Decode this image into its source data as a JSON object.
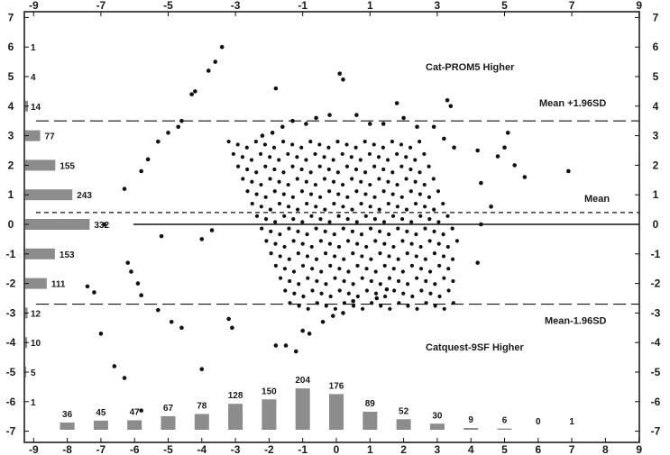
{
  "chart_data": {
    "type": "scatter",
    "description_of_axes": "",
    "x_ticks_top": [
      "-9",
      "-7",
      "-5",
      "-3",
      "-1",
      "1",
      "3",
      "5",
      "7",
      "9"
    ],
    "x_ticks_bottom": [
      "-9",
      "-8",
      "-7",
      "-6",
      "-5",
      "-4",
      "-3",
      "-2",
      "-1",
      "0",
      "1",
      "2",
      "3",
      "4",
      "5",
      "6",
      "7",
      "8",
      "9"
    ],
    "y_ticks": [
      "7",
      "6",
      "5",
      "4",
      "3",
      "2",
      "1",
      "0",
      "-1",
      "-2",
      "-3",
      "-4",
      "-5",
      "-6",
      "-7"
    ],
    "xlim": [
      -9,
      9
    ],
    "ylim": [
      -7,
      7
    ],
    "reference_lines": [
      {
        "name": "Mean +1.96SD",
        "y": 3.5,
        "style": "long-dash"
      },
      {
        "name": "Mean",
        "y": 0.4,
        "style": "short-dash"
      },
      {
        "name": "",
        "y": 0,
        "style": "solid"
      },
      {
        "name": "Mean-1.96SD",
        "y": -2.7,
        "style": "long-dash"
      }
    ],
    "annotations": [
      "Cat-PROM5 Higher",
      "Catquest-9SF Higher"
    ],
    "left_histogram": {
      "y": [
        6,
        5,
        4,
        3,
        2,
        1,
        0,
        -1,
        -2,
        -3,
        -4,
        -5,
        -6
      ],
      "counts": [
        1,
        4,
        14,
        77,
        155,
        243,
        332,
        153,
        111,
        12,
        10,
        5,
        1
      ]
    },
    "bottom_histogram": {
      "x": [
        -8,
        -7,
        -6,
        -5,
        -4,
        -3,
        -2,
        -1,
        0,
        1,
        2,
        3,
        4,
        5,
        6,
        7
      ],
      "counts": [
        36,
        45,
        47,
        67,
        78,
        128,
        150,
        204,
        176,
        89,
        52,
        30,
        9,
        6,
        0,
        1
      ]
    },
    "points": [
      [
        -3.4,
        6.0
      ],
      [
        -3.6,
        5.5
      ],
      [
        -3.8,
        5.2
      ],
      [
        -1.8,
        4.6
      ],
      [
        0.1,
        5.1
      ],
      [
        0.2,
        4.9
      ],
      [
        -4.2,
        4.5
      ],
      [
        -4.3,
        4.4
      ],
      [
        3.3,
        4.2
      ],
      [
        3.4,
        4.0
      ],
      [
        1.8,
        4.1
      ],
      [
        -6.3,
        1.2
      ],
      [
        -5.8,
        1.8
      ],
      [
        -5.6,
        2.2
      ],
      [
        -5.3,
        2.8
      ],
      [
        -5.0,
        3.1
      ],
      [
        -4.7,
        3.3
      ],
      [
        -4.6,
        3.5
      ],
      [
        -6.9,
        0.0
      ],
      [
        -5.2,
        -0.4
      ],
      [
        -4.0,
        -0.5
      ],
      [
        -3.7,
        -0.2
      ],
      [
        -7.2,
        -2.3
      ],
      [
        -7.4,
        -2.1
      ],
      [
        -6.2,
        -1.3
      ],
      [
        -6.1,
        -1.6
      ],
      [
        -5.9,
        -2.0
      ],
      [
        -5.8,
        -2.4
      ],
      [
        -5.3,
        -2.9
      ],
      [
        -4.9,
        -3.3
      ],
      [
        -4.6,
        -3.5
      ],
      [
        -7.0,
        -3.7
      ],
      [
        -6.6,
        -4.8
      ],
      [
        -6.3,
        -5.2
      ],
      [
        -5.8,
        -6.3
      ],
      [
        -4.0,
        -4.9
      ],
      [
        -3.2,
        -3.2
      ],
      [
        -3.1,
        -3.5
      ],
      [
        -1.8,
        -4.1
      ],
      [
        -1.5,
        -4.1
      ],
      [
        -1.2,
        -4.3
      ],
      [
        -1.0,
        -3.6
      ],
      [
        -0.8,
        -3.7
      ],
      [
        -0.4,
        -3.3
      ],
      [
        -0.1,
        -3.1
      ],
      [
        0.2,
        -3.0
      ],
      [
        0.5,
        -2.6
      ],
      [
        1.2,
        -2.5
      ],
      [
        1.5,
        -2.2
      ],
      [
        4.2,
        -1.3
      ],
      [
        4.3,
        1.4
      ],
      [
        4.6,
        0.6
      ],
      [
        4.3,
        0.0
      ],
      [
        4.8,
        2.3
      ],
      [
        5.3,
        2.0
      ],
      [
        5.0,
        2.6
      ],
      [
        5.1,
        3.1
      ],
      [
        5.6,
        1.6
      ],
      [
        4.2,
        2.5
      ],
      [
        6.9,
        1.8
      ],
      [
        -2.2,
        3.0
      ],
      [
        -1.9,
        3.1
      ],
      [
        -1.6,
        3.3
      ],
      [
        -1.3,
        3.5
      ],
      [
        -0.9,
        3.4
      ],
      [
        -0.6,
        3.6
      ],
      [
        -0.2,
        3.7
      ],
      [
        0.6,
        3.7
      ],
      [
        1.0,
        3.4
      ],
      [
        1.4,
        3.4
      ],
      [
        2.0,
        3.6
      ],
      [
        2.4,
        3.3
      ],
      [
        2.9,
        3.3
      ],
      [
        3.2,
        2.9
      ],
      [
        3.5,
        2.6
      ]
    ]
  }
}
